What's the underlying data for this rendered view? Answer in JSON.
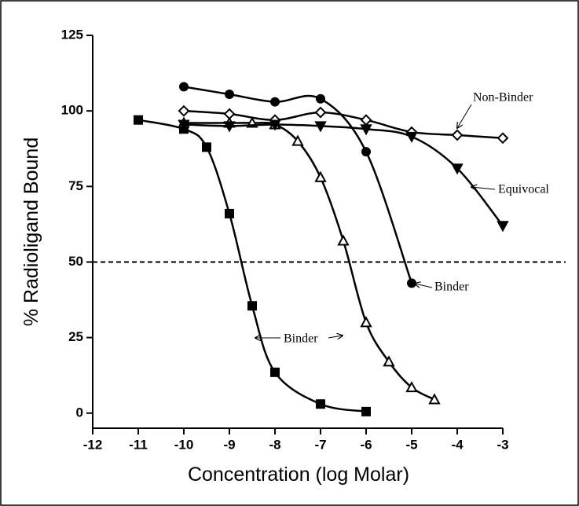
{
  "chart_data": {
    "type": "scatter",
    "xlabel": "Concentration (log Molar)",
    "ylabel": "% Radioligand Bound",
    "xlim": [
      -12,
      -3
    ],
    "xticks": [
      -12,
      -11,
      -10,
      -9,
      -8,
      -7,
      -6,
      -5,
      -4,
      -3
    ],
    "ylim": [
      -5,
      125
    ],
    "yticks": [
      0,
      25,
      50,
      75,
      100,
      125
    ],
    "reference_line": 50,
    "series": [
      {
        "marker": "square",
        "filled": true,
        "color": "#000000",
        "x": [
          -11,
          -10,
          -9.5,
          -9,
          -8.5,
          -8,
          -7,
          -6
        ],
        "values": [
          97,
          94,
          88,
          66,
          35.5,
          13.5,
          3,
          0.5
        ]
      },
      {
        "marker": "triangle",
        "filled": false,
        "color": "#000000",
        "x": [
          -10,
          -9,
          -8.5,
          -8,
          -7.5,
          -7,
          -6.5,
          -6,
          -5.5,
          -5,
          -4.5
        ],
        "values": [
          96,
          96,
          96,
          95.5,
          90,
          78,
          57,
          30,
          17,
          8.5,
          4.5
        ]
      },
      {
        "marker": "circle",
        "filled": true,
        "color": "#000000",
        "x": [
          -10,
          -9,
          -8,
          -7,
          -6,
          -5
        ],
        "values": [
          108,
          105.5,
          103,
          104,
          86.5,
          43
        ]
      },
      {
        "marker": "diamond",
        "filled": false,
        "color": "#000000",
        "x": [
          -10,
          -9,
          -8,
          -7,
          -6,
          -5,
          -4,
          -3
        ],
        "values": [
          100,
          99,
          97,
          99.5,
          97,
          93,
          92,
          91
        ]
      },
      {
        "marker": "triangle-down",
        "filled": true,
        "color": "#000000",
        "x": [
          -10,
          -9,
          -8,
          -7,
          -6,
          -5,
          -4,
          -3
        ],
        "values": [
          95.5,
          95,
          95.5,
          95,
          94,
          91.5,
          81,
          62
        ]
      }
    ],
    "annotations": [
      "Non-Binder",
      "Equivocal",
      "Binder",
      "Binder"
    ]
  }
}
